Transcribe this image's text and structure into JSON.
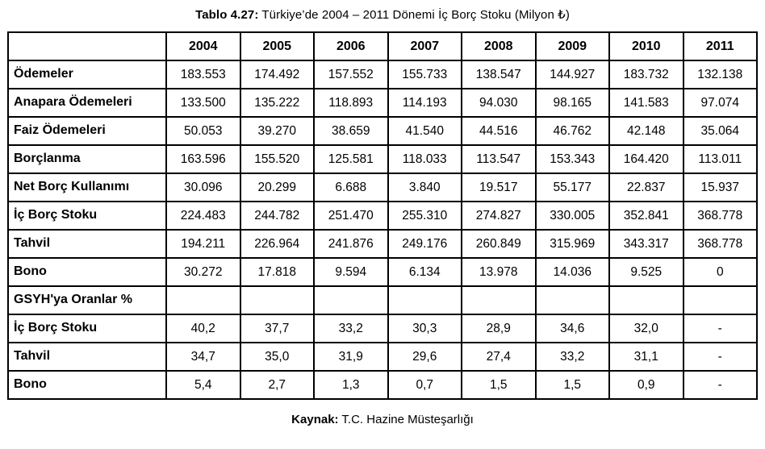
{
  "title": {
    "prefix": "Tablo 4.27:",
    "text": " Türkiye’de 2004 – 2011 Dönemi İç Borç Stoku (Milyon ₺)"
  },
  "colors": {
    "border": "#000000",
    "text": "#000000",
    "background": "#ffffff"
  },
  "table": {
    "corner_label": "",
    "years": [
      "2004",
      "2005",
      "2006",
      "2007",
      "2008",
      "2009",
      "2010",
      "2011"
    ],
    "rows": [
      {
        "label": "Ödemeler",
        "values": [
          "183.553",
          "174.492",
          "157.552",
          "155.733",
          "138.547",
          "144.927",
          "183.732",
          "132.138"
        ]
      },
      {
        "label": "Anapara Ödemeleri",
        "values": [
          "133.500",
          "135.222",
          "118.893",
          "114.193",
          "94.030",
          "98.165",
          "141.583",
          "97.074"
        ]
      },
      {
        "label": "Faiz Ödemeleri",
        "values": [
          "50.053",
          "39.270",
          "38.659",
          "41.540",
          "44.516",
          "46.762",
          "42.148",
          "35.064"
        ]
      },
      {
        "label": "Borçlanma",
        "values": [
          "163.596",
          "155.520",
          "125.581",
          "118.033",
          "113.547",
          "153.343",
          "164.420",
          "113.011"
        ]
      },
      {
        "label": "Net Borç Kullanımı",
        "values": [
          "30.096",
          "20.299",
          "6.688",
          "3.840",
          "19.517",
          "55.177",
          "22.837",
          "15.937"
        ]
      },
      {
        "label": "İç Borç Stoku",
        "values": [
          "224.483",
          "244.782",
          "251.470",
          "255.310",
          "274.827",
          "330.005",
          "352.841",
          "368.778"
        ]
      },
      {
        "label": "Tahvil",
        "values": [
          "194.211",
          "226.964",
          "241.876",
          "249.176",
          "260.849",
          "315.969",
          "343.317",
          "368.778"
        ]
      },
      {
        "label": "Bono",
        "values": [
          "30.272",
          "17.818",
          "9.594",
          "6.134",
          "13.978",
          "14.036",
          "9.525",
          "0"
        ]
      },
      {
        "label": "GSYH'ya Oranlar %",
        "values": [
          "",
          "",
          "",
          "",
          "",
          "",
          "",
          ""
        ]
      },
      {
        "label": "İç Borç Stoku",
        "values": [
          "40,2",
          "37,7",
          "33,2",
          "30,3",
          "28,9",
          "34,6",
          "32,0",
          "-"
        ]
      },
      {
        "label": "Tahvil",
        "values": [
          "34,7",
          "35,0",
          "31,9",
          "29,6",
          "27,4",
          "33,2",
          "31,1",
          "-"
        ]
      },
      {
        "label": "Bono",
        "values": [
          "5,4",
          "2,7",
          "1,3",
          "0,7",
          "1,5",
          "1,5",
          "0,9",
          "-"
        ]
      }
    ]
  },
  "source": {
    "prefix": "Kaynak:",
    "text": " T.C. Hazine Müsteşarlığı"
  }
}
